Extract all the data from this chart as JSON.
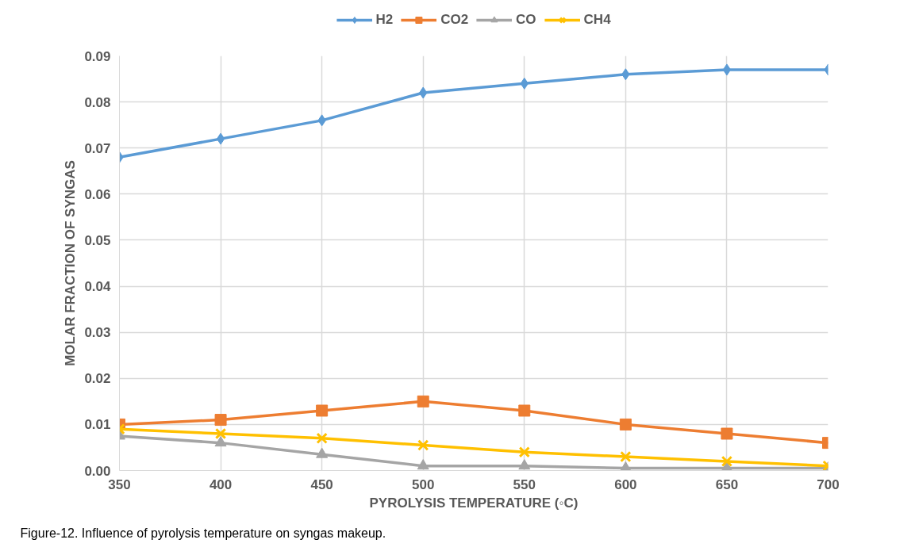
{
  "chart_data": {
    "type": "line",
    "xlabel": "PYROLYSIS TEMPERATURE (◦C)",
    "ylabel": "MOLAR FRACTION OF SYNGAS",
    "x": [
      350,
      400,
      450,
      500,
      550,
      600,
      650,
      700
    ],
    "series": [
      {
        "name": "H2",
        "color": "#5b9bd5",
        "marker": "diamond",
        "values": [
          0.068,
          0.072,
          0.076,
          0.082,
          0.084,
          0.086,
          0.087,
          0.087
        ]
      },
      {
        "name": "CO2",
        "color": "#ed7d31",
        "marker": "square",
        "values": [
          0.01,
          0.011,
          0.013,
          0.015,
          0.013,
          0.01,
          0.008,
          0.006
        ]
      },
      {
        "name": "CO",
        "color": "#a5a5a5",
        "marker": "triangle",
        "values": [
          0.0075,
          0.006,
          0.0035,
          0.001,
          0.001,
          0.0005,
          0.0005,
          0.0005
        ]
      },
      {
        "name": "CH4",
        "color": "#ffc000",
        "marker": "cross",
        "values": [
          0.009,
          0.008,
          0.007,
          0.0055,
          0.004,
          0.003,
          0.002,
          0.001
        ]
      }
    ],
    "xlim": [
      350,
      700
    ],
    "xticks": [
      350,
      400,
      450,
      500,
      550,
      600,
      650,
      700
    ],
    "ylim": [
      0,
      0.09
    ],
    "yticks": [
      {
        "value": 0,
        "label": "0.00"
      },
      0.01,
      0.02,
      0.03,
      0.04,
      0.05,
      0.06,
      0.07,
      0.08,
      0.09
    ],
    "grid": true,
    "legend": "top",
    "annotations": [
      "Figure-12. Influence of pyrolysis temperature on syngas makeup."
    ]
  }
}
